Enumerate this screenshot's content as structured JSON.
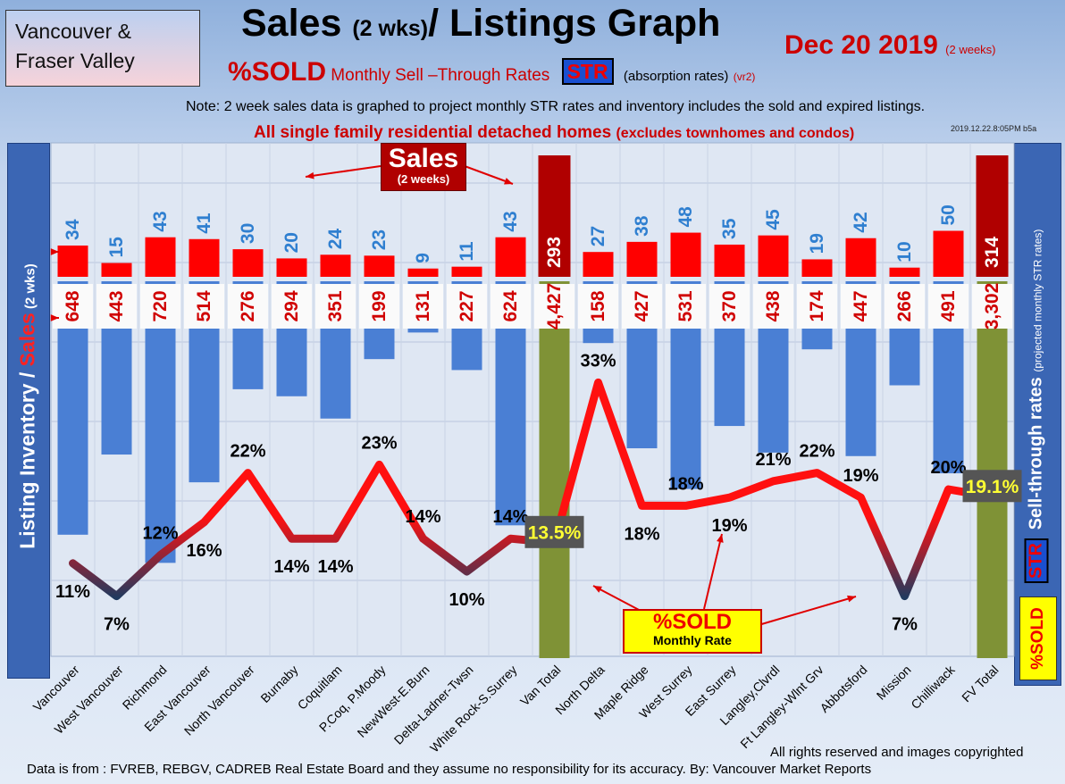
{
  "header": {
    "region_line1": "Vancouver &",
    "region_line2": "Fraser Valley",
    "title_part1": "Sales",
    "title_small": "(2 wks)",
    "title_part2": "/ Listings Graph",
    "date": "Dec 20 2019",
    "date_note": "(2 weeks)",
    "sold_label": "%SOLD",
    "str_words": "Monthly Sell –Through Rates",
    "str_badge": "STR",
    "absorption": "(absorption rates)",
    "version": "(vr2)",
    "note": "Note: 2 week sales data is graphed to project monthly STR rates and inventory includes the sold and expired listings.",
    "subtitle_main": "All single family residential detached homes",
    "subtitle_small": "(excludes townhomes and condos)",
    "stamp": "2019.12.22.8:05PM b5a"
  },
  "axis_labels": {
    "left_main": "Listing Inventory / ",
    "left_red": "Sales",
    "left_small": " (2 wks)",
    "right_main": "Sell-through rates",
    "right_small": "(projected monthly STR rates)",
    "right_str": "STR",
    "right_sold": "%SOLD"
  },
  "callouts": {
    "sales_big": "Sales",
    "sales_small": "(2 weeks)",
    "sold_big": "%SOLD",
    "sold_small": "Monthly Rate"
  },
  "footer": {
    "rights": "All rights reserved and  images copyrighted",
    "source": "Data is from : FVREB, REBGV, CADREB Real Estate Board and they assume no responsibility for its accuracy. By: Vancouver Market Reports"
  },
  "colors": {
    "sales": "#ff0000",
    "total_sales": "#b00000",
    "inventory": "#4a7fd4",
    "total_inventory": "#7f9236",
    "line_high": "#ff1010",
    "line_low": "#1f3a5f"
  },
  "chart_data": {
    "type": "bar",
    "categories": [
      "Vancouver",
      "West Vancouver",
      "Richmond",
      "East Vancouver",
      "North Vancouver",
      "Burnaby",
      "Coquitlam",
      "P.Coq, P.Moody",
      "NewWest-E.Burn",
      "Delta-Ladner-Twsn",
      "White Rock-S.Surrey",
      "Van Total",
      "North Delta",
      "Maple Ridge",
      "West Surrey",
      "East Surrey",
      "Langley,Clvrdl",
      "Ft Langley-Wlnt Grv",
      "Abbotsford",
      "Mission",
      "Chilliwack",
      "FV Total"
    ],
    "totals": [
      "Van Total",
      "FV Total"
    ],
    "series": [
      {
        "name": "Sales",
        "values": [
          34,
          15,
          43,
          41,
          30,
          20,
          24,
          23,
          9,
          11,
          43,
          293,
          27,
          38,
          48,
          35,
          45,
          19,
          42,
          10,
          50,
          314
        ],
        "labels": [
          "34",
          "15",
          "43",
          "41",
          "30",
          "20",
          "24",
          "23",
          "9",
          "11",
          "43",
          "293",
          "27",
          "38",
          "48",
          "35",
          "45",
          "19",
          "42",
          "10",
          "50",
          "314"
        ]
      },
      {
        "name": "Listing Inventory",
        "values": [
          648,
          443,
          720,
          514,
          276,
          294,
          351,
          199,
          131,
          227,
          624,
          4427,
          158,
          427,
          531,
          370,
          438,
          174,
          447,
          266,
          491,
          3302
        ],
        "labels": [
          "648",
          "443",
          "720",
          "514",
          "276",
          "294",
          "351",
          "199",
          "131",
          "227",
          "624",
          "4,427",
          "158",
          "427",
          "531",
          "370",
          "438",
          "174",
          "447",
          "266",
          "491",
          "3,302"
        ]
      },
      {
        "name": "%SOLD",
        "values": [
          11,
          7,
          12,
          16,
          22,
          14,
          14,
          23,
          14,
          10,
          14,
          13.5,
          33,
          18,
          18,
          19,
          21,
          22,
          19,
          7,
          20,
          19.1
        ],
        "labels": [
          "11%",
          "7%",
          "12%",
          "16%",
          "22%",
          "14%",
          "14%",
          "23%",
          "14%",
          "10%",
          "14%",
          "13.5%",
          "33%",
          "18%",
          "18%",
          "19%",
          "21%",
          "22%",
          "19%",
          "7%",
          "20%",
          "19.1%"
        ]
      }
    ]
  }
}
